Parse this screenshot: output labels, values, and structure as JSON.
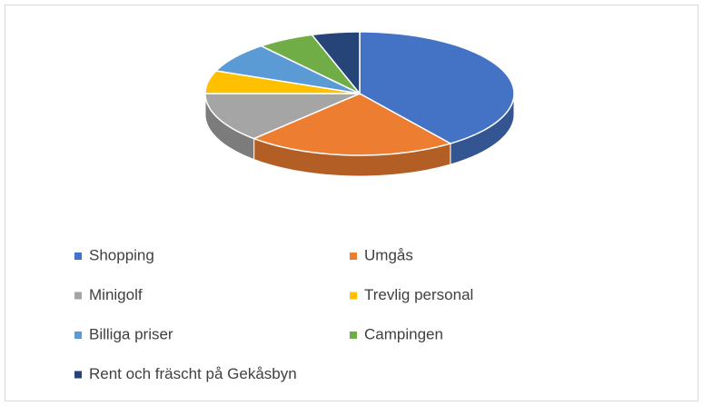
{
  "chart_data": {
    "type": "pie",
    "categories": [
      "Shopping",
      "Umgås",
      "Minigolf",
      "Trevlig personal",
      "Billiga priser",
      "Campingen",
      "Rent och fräscht på Gekåsbyn"
    ],
    "values": [
      40,
      22,
      13,
      6,
      8,
      6,
      5
    ],
    "colors": [
      "#4472c4",
      "#ed7d31",
      "#a5a5a5",
      "#ffc000",
      "#5b9bd5",
      "#70ad47",
      "#264478"
    ],
    "legend": "bottom"
  }
}
